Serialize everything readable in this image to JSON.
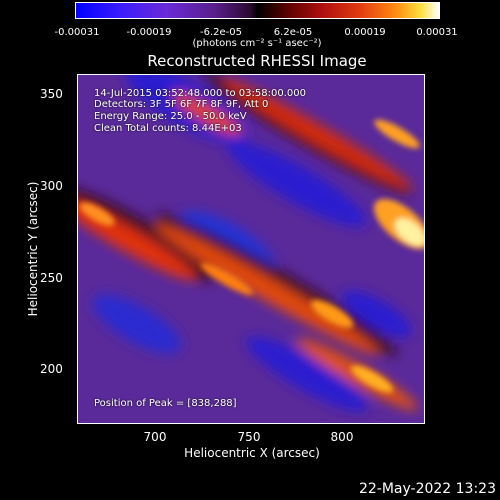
{
  "colorbar": {
    "ticks": [
      "-0.00031",
      "-0.00019",
      "-6.2e-05",
      "6.2e-05",
      "0.00019",
      "0.00031"
    ],
    "units": "(photons cm⁻² s⁻¹ asec⁻²)"
  },
  "title": "Reconstructed RHESSI Image",
  "annotations": {
    "time_range": "14-Jul-2015 03:52:48.000 to 03:58:00.000",
    "detectors": "Detectors: 3F 5F 6F 7F 8F 9F, Att 0",
    "energy": "Energy Range: 25.0 - 50.0 keV",
    "clean": "Clean     Total counts: 8.44E+03",
    "peak": "Position of Peak = [838,288]"
  },
  "axes": {
    "xlabel": "Heliocentric X (arcsec)",
    "ylabel": "Heliocentric Y (arcsec)",
    "xticks": [
      "700",
      "750",
      "800"
    ],
    "yticks": [
      "350",
      "300",
      "250",
      "200"
    ]
  },
  "timestamp": "22-May-2022 13:23",
  "colors": {
    "background": "#000000",
    "colormap_low": "#0000ff",
    "colormap_mid": "#000000",
    "colormap_high": "#ffffff"
  }
}
